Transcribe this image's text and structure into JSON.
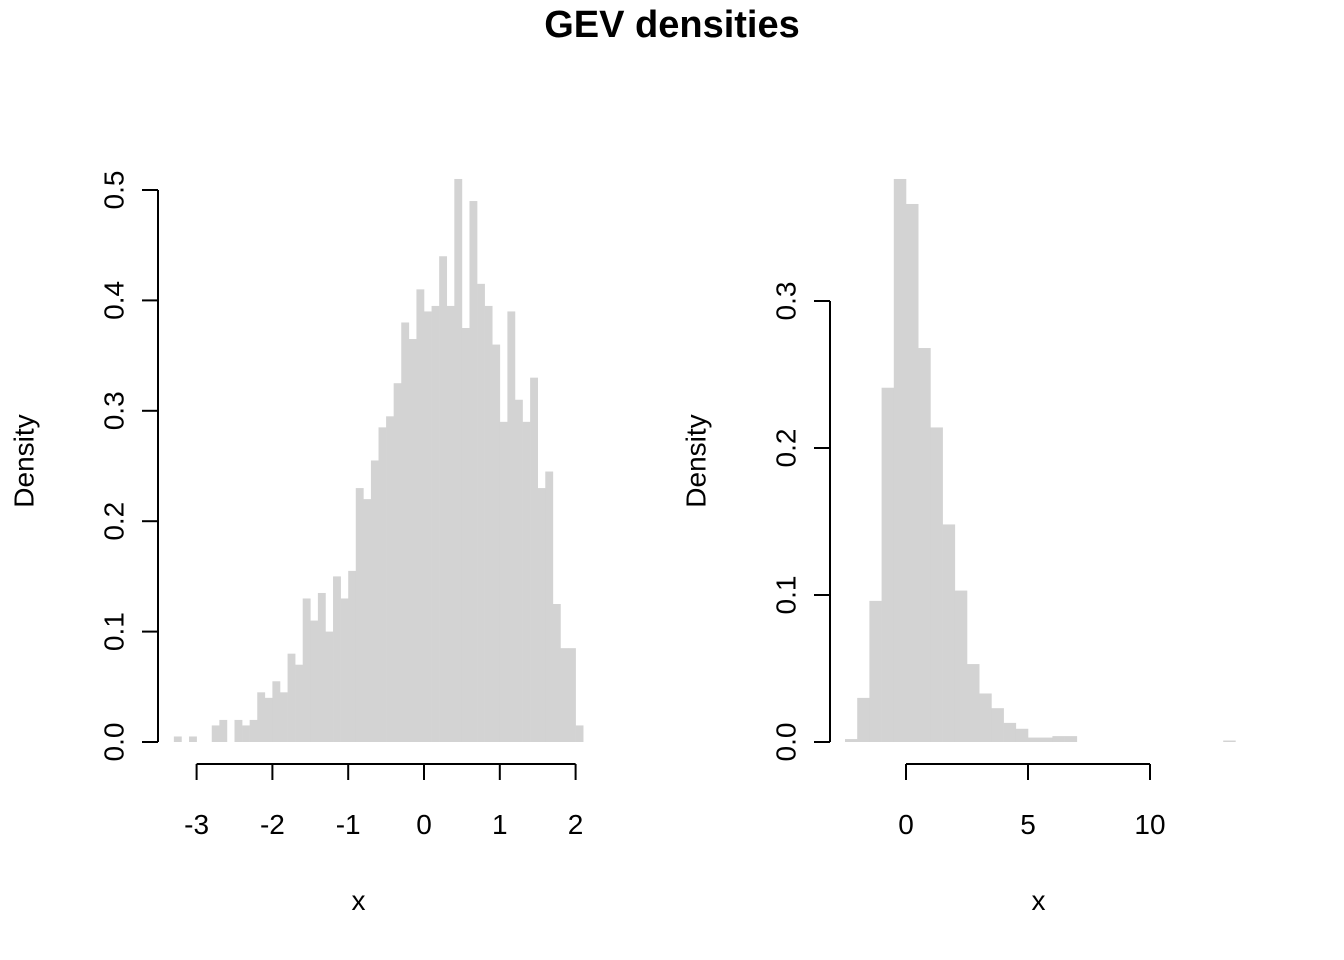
{
  "title": "GEV densities",
  "colors": {
    "bar": "#d3d3d3",
    "axis": "#000000",
    "background": "#ffffff"
  },
  "chart_data": [
    {
      "type": "bar",
      "title": "",
      "xlabel": "x",
      "ylabel": "Density",
      "xlim": [
        -3.4,
        2.0
      ],
      "ylim": [
        0,
        0.5
      ],
      "xticks": [
        -3,
        -2,
        -1,
        0,
        1,
        2
      ],
      "yticks": [
        0.0,
        0.1,
        0.2,
        0.3,
        0.4,
        0.5
      ],
      "xtick_labels": [
        "-3",
        "-2",
        "-1",
        "0",
        "1",
        "2"
      ],
      "ytick_labels": [
        "0.0",
        "0.1",
        "0.2",
        "0.3",
        "0.4",
        "0.5"
      ],
      "bin_start": -3.3,
      "bin_width": 0.1,
      "values": [
        0.005,
        0,
        0.005,
        0,
        0,
        0.015,
        0.02,
        0,
        0.02,
        0.015,
        0.02,
        0.045,
        0.04,
        0.055,
        0.045,
        0.08,
        0.07,
        0.13,
        0.11,
        0.135,
        0.1,
        0.15,
        0.13,
        0.155,
        0.23,
        0.22,
        0.255,
        0.285,
        0.295,
        0.325,
        0.38,
        0.365,
        0.41,
        0.39,
        0.395,
        0.44,
        0.395,
        0.51,
        0.375,
        0.49,
        0.415,
        0.395,
        0.36,
        0.29,
        0.39,
        0.31,
        0.29,
        0.33,
        0.23,
        0.245,
        0.125,
        0.085,
        0.085,
        0.015
      ]
    },
    {
      "type": "bar",
      "title": "",
      "xlabel": "x",
      "ylabel": "Density",
      "xlim": [
        -2.5,
        14.0
      ],
      "ylim": [
        0,
        0.38
      ],
      "xticks": [
        0,
        5,
        10
      ],
      "yticks": [
        0.0,
        0.1,
        0.2,
        0.3
      ],
      "xtick_labels": [
        "0",
        "5",
        "10"
      ],
      "ytick_labels": [
        "0.0",
        "0.1",
        "0.2",
        "0.3"
      ],
      "bin_start": -2.5,
      "bin_width": 0.5,
      "values": [
        0.002,
        0.03,
        0.096,
        0.241,
        0.383,
        0.366,
        0.268,
        0.214,
        0.148,
        0.103,
        0.053,
        0.033,
        0.023,
        0.013,
        0.009,
        0.003,
        0.003,
        0.004,
        0.004,
        0,
        0,
        0,
        0,
        0,
        0,
        0,
        0,
        0,
        0,
        0,
        0,
        0.001
      ]
    }
  ]
}
